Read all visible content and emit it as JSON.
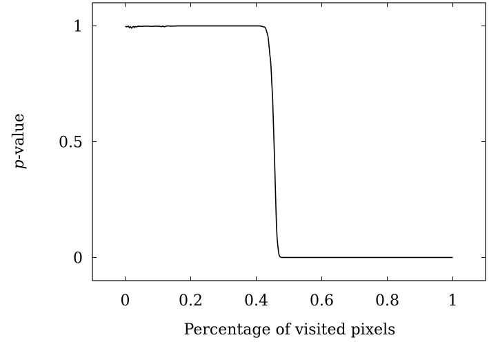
{
  "chart_data": {
    "type": "line",
    "title": "",
    "xlabel": "Percentage of visited pixels",
    "ylabel_italic": "p",
    "ylabel_rest": "-value",
    "xlim": [
      -0.1,
      1.1
    ],
    "ylim": [
      -0.1,
      1.1
    ],
    "xticks": [
      0,
      0.2,
      0.4,
      0.6,
      0.8,
      1
    ],
    "xtick_labels": [
      "0",
      "0.2",
      "0.4",
      "0.6",
      "0.8",
      "1"
    ],
    "yticks": [
      0,
      0.5,
      1
    ],
    "ytick_labels": [
      "0",
      "0.5",
      "1"
    ],
    "grid": false,
    "series": [
      {
        "x": [
          0.0,
          0.005,
          0.01,
          0.013,
          0.016,
          0.02,
          0.022,
          0.025,
          0.028,
          0.03,
          0.035,
          0.04,
          0.05,
          0.06,
          0.07,
          0.08,
          0.09,
          0.1,
          0.11,
          0.115,
          0.12,
          0.125,
          0.13,
          0.14,
          0.16,
          0.2,
          0.25,
          0.3,
          0.35,
          0.4,
          0.41,
          0.415,
          0.42,
          0.425,
          0.428,
          0.43,
          0.433,
          0.436,
          0.438,
          0.44,
          0.442,
          0.444,
          0.446,
          0.448,
          0.45,
          0.452,
          0.454,
          0.456,
          0.458,
          0.46,
          0.462,
          0.464,
          0.466,
          0.468,
          0.47,
          0.472,
          0.474,
          0.476,
          0.478,
          0.48,
          0.49,
          0.5,
          0.6,
          0.7,
          0.8,
          0.9,
          1.0
        ],
        "y": [
          0.998,
          0.996,
          0.999,
          0.992,
          0.997,
          0.99,
          0.995,
          0.998,
          0.993,
          0.997,
          0.996,
          0.999,
          0.998,
          0.999,
          0.999,
          0.998,
          0.999,
          0.999,
          0.997,
          0.999,
          0.996,
          0.999,
          1.0,
          0.999,
          1.0,
          1.0,
          1.0,
          1.0,
          1.0,
          1.0,
          1.0,
          0.999,
          0.997,
          0.995,
          0.992,
          0.985,
          0.97,
          0.955,
          0.93,
          0.9,
          0.87,
          0.85,
          0.8,
          0.74,
          0.69,
          0.6,
          0.51,
          0.42,
          0.32,
          0.22,
          0.13,
          0.08,
          0.05,
          0.025,
          0.01,
          0.004,
          0.002,
          0.001,
          0.0,
          0.0,
          0.0,
          0.0,
          0.0,
          0.0,
          0.0,
          0.0,
          0.0
        ]
      }
    ]
  }
}
